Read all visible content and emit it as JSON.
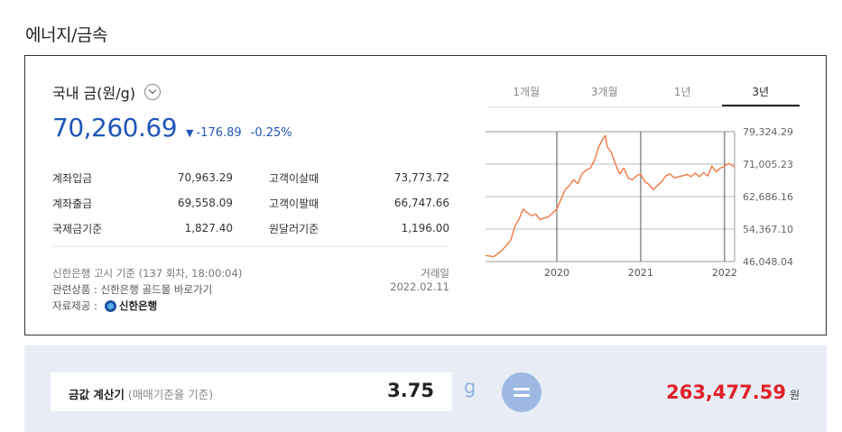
{
  "section_title": "에너지/금속",
  "item": {
    "title": "국내 금(원/g)",
    "price": "70,260.69",
    "change": "-176.89",
    "change_pct": "-0.25%",
    "change_color": "#2156b8"
  },
  "info": [
    {
      "label1": "계좌입금",
      "value1": "70,963.29",
      "label2": "고객이살때",
      "value2": "73,773.72"
    },
    {
      "label1": "계좌출금",
      "value1": "69,558.09",
      "label2": "고객이팔때",
      "value2": "66,747.66"
    },
    {
      "label1": "국제금기준",
      "value1": "1,827.40",
      "label2": "원달러기준",
      "value2": "1,196.00"
    }
  ],
  "notes": {
    "source_notice": "신한은행 고시 기준 (137 회차, 18:00:04)",
    "trade_date": "거래일 2022.02.11",
    "related": "관련상품 : 신한은행 골드몰 바로가기",
    "provider_label": "자료제공 :",
    "provider_name": "신한은행"
  },
  "tabs": [
    {
      "label": "1개월",
      "active": false
    },
    {
      "label": "3개월",
      "active": false
    },
    {
      "label": "1년",
      "active": false
    },
    {
      "label": "3년",
      "active": true
    }
  ],
  "chart_data": {
    "type": "line",
    "y_ticks": [
      "79,324.29",
      "71,005.23",
      "62,686.16",
      "54,367.10",
      "46,048.04"
    ],
    "y_tick_values": [
      79324.29,
      71005.23,
      62686.16,
      54367.1,
      46048.04
    ],
    "ylim": [
      46048.04,
      79324.29
    ],
    "x_ticks": [
      "2020",
      "2021",
      "2022"
    ],
    "x_tick_positions": [
      2020.0,
      2021.0,
      2022.0
    ],
    "xlim": [
      2019.15,
      2022.12
    ],
    "grid": true,
    "line_color": "#f07844",
    "series": [
      {
        "x": [
          2019.15,
          2019.25,
          2019.35,
          2019.45,
          2019.5,
          2019.55,
          2019.6,
          2019.65,
          2019.7,
          2019.75,
          2019.8,
          2019.85,
          2019.9,
          2019.95,
          2020.0,
          2020.05,
          2020.1,
          2020.15,
          2020.2,
          2020.25,
          2020.3,
          2020.35,
          2020.4,
          2020.45,
          2020.5,
          2020.55,
          2020.58,
          2020.6,
          2020.65,
          2020.7,
          2020.75,
          2020.8,
          2020.85,
          2020.9,
          2020.95,
          2021.0,
          2021.05,
          2021.1,
          2021.15,
          2021.2,
          2021.25,
          2021.3,
          2021.35,
          2021.4,
          2021.45,
          2021.5,
          2021.55,
          2021.6,
          2021.65,
          2021.7,
          2021.75,
          2021.8,
          2021.85,
          2021.9,
          2021.95,
          2022.0,
          2022.05,
          2022.12
        ],
        "y": [
          47600,
          47300,
          49000,
          51500,
          55000,
          57000,
          59500,
          58500,
          57800,
          58200,
          56800,
          57200,
          57500,
          58500,
          59500,
          62000,
          64500,
          65500,
          67000,
          66000,
          68500,
          69500,
          70000,
          72000,
          75500,
          77500,
          78400,
          75500,
          74000,
          71000,
          68500,
          70000,
          67500,
          67000,
          68000,
          68500,
          66500,
          65800,
          64500,
          65500,
          66500,
          68000,
          68500,
          67500,
          67800,
          68000,
          68400,
          67800,
          68700,
          67800,
          68800,
          68000,
          70500,
          69000,
          70000,
          70500,
          71200,
          70260
        ]
      }
    ]
  },
  "calculator": {
    "label": "금값 계산기",
    "sub_label": "(매매기준율 기준)",
    "input_value": "3.75",
    "unit": "g",
    "result": "263,477.59",
    "result_unit": "원",
    "result_color": "#e0202a"
  }
}
